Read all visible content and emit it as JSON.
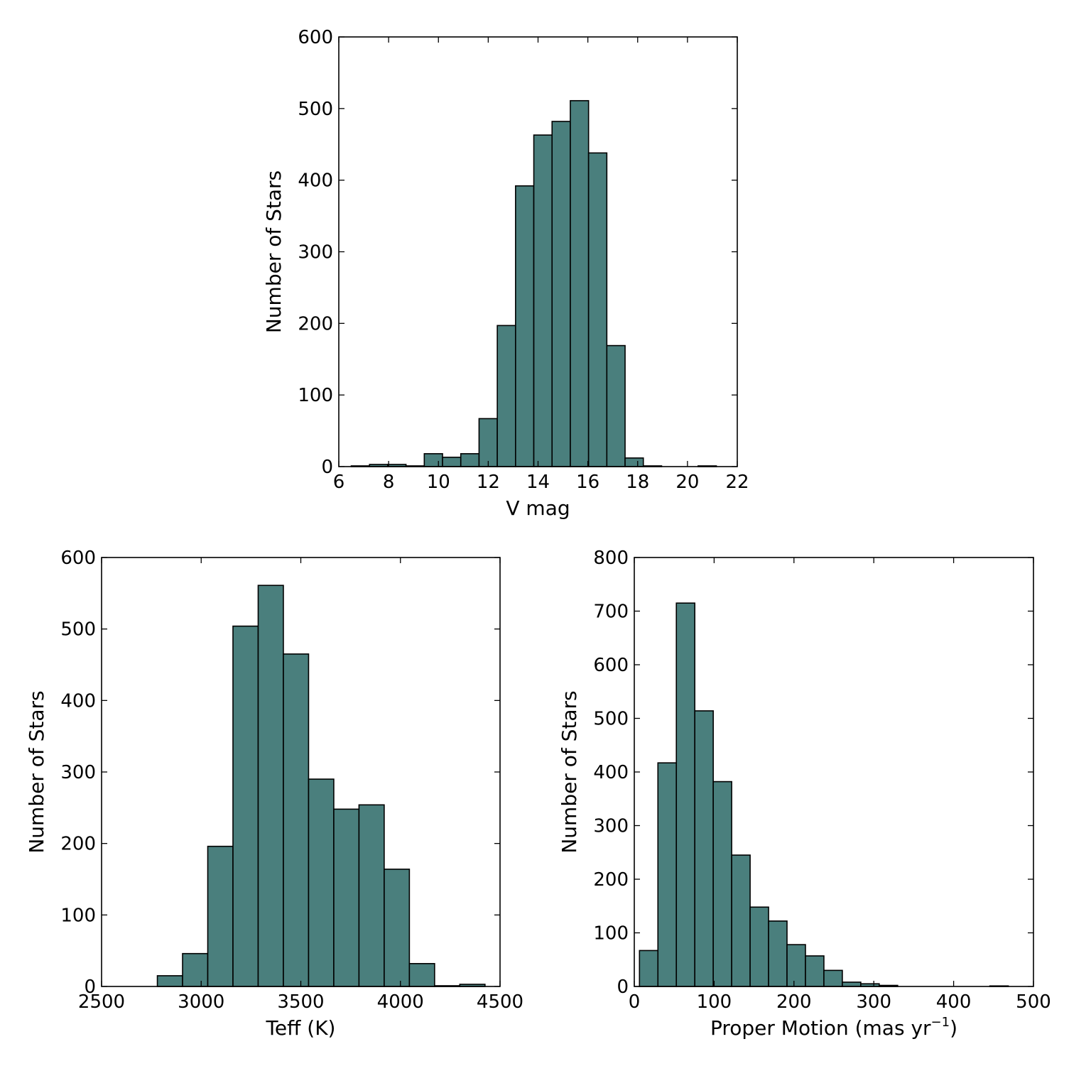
{
  "colors": {
    "bar_fill": "#4a7f7d",
    "bar_edge": "#000000",
    "axes": "#000000",
    "background": "#ffffff"
  },
  "chart_data": [
    {
      "type": "bar",
      "subtype": "histogram",
      "title": "",
      "xlabel": "V mag",
      "ylabel": "Number of Stars",
      "xlim": [
        6,
        22
      ],
      "ylim": [
        0,
        600
      ],
      "xticks": [
        6,
        8,
        10,
        12,
        14,
        16,
        18,
        20,
        22
      ],
      "yticks": [
        0,
        100,
        200,
        300,
        400,
        500,
        600
      ],
      "bin_width": 0.733,
      "bin_edges_start": 6.5,
      "values": [
        1,
        3,
        3,
        1,
        18,
        13,
        18,
        67,
        197,
        392,
        463,
        482,
        511,
        438,
        169,
        12,
        1,
        0,
        0,
        1,
        0
      ],
      "grid": false
    },
    {
      "type": "bar",
      "subtype": "histogram",
      "title": "",
      "xlabel": "Teff (K)",
      "ylabel": "Number of Stars",
      "xlim": [
        2500,
        4500
      ],
      "ylim": [
        0,
        600
      ],
      "xticks": [
        2500,
        3000,
        3500,
        4000,
        4500
      ],
      "yticks": [
        0,
        100,
        200,
        300,
        400,
        500,
        600
      ],
      "bin_width": 126.5,
      "bin_edges_start": 2780,
      "values": [
        15,
        46,
        196,
        504,
        561,
        465,
        290,
        248,
        254,
        164,
        32,
        1,
        3
      ],
      "grid": false
    },
    {
      "type": "bar",
      "subtype": "histogram",
      "title": "",
      "xlabel": "Proper Motion (mas yr",
      "xlabel_sup": "−1",
      "xlabel_end": ")",
      "ylabel": "Number of Stars",
      "xlim": [
        0,
        500
      ],
      "ylim": [
        0,
        800
      ],
      "xticks": [
        0,
        100,
        200,
        300,
        400,
        500
      ],
      "yticks": [
        0,
        100,
        200,
        300,
        400,
        500,
        600,
        700,
        800
      ],
      "bin_width": 23.1,
      "bin_edges_start": 6.5,
      "values": [
        67,
        417,
        715,
        514,
        382,
        245,
        148,
        122,
        78,
        57,
        30,
        8,
        5,
        2,
        0,
        0,
        0,
        0,
        0,
        1
      ],
      "grid": false
    }
  ]
}
